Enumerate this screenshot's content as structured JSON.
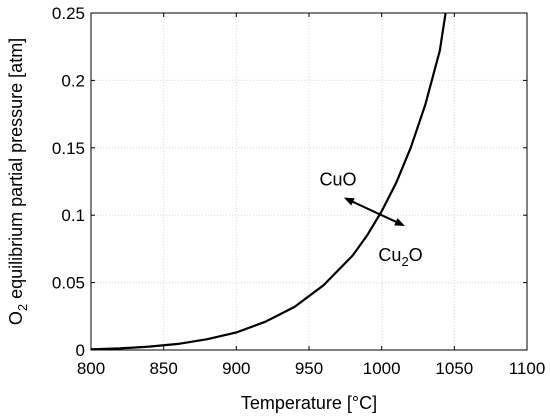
{
  "chart_data": {
    "type": "line",
    "xlabel": "Temperature [°C]",
    "ylabel": {
      "base": "O",
      "sub": "2",
      "rest": " equilibrium partial pressure [atm]"
    },
    "xlim": [
      800,
      1100
    ],
    "ylim": [
      0,
      0.25
    ],
    "xticks": [
      "800",
      "850",
      "900",
      "950",
      "1000",
      "1050",
      "1100"
    ],
    "yticks": [
      "0",
      "0.05",
      "0.1",
      "0.15",
      "0.2",
      "0.25"
    ],
    "grid": true,
    "line_color": "#000000",
    "series": [
      {
        "x": [
          800,
          820,
          840,
          860,
          880,
          900,
          920,
          940,
          960,
          980,
          990,
          1000,
          1010,
          1020,
          1030,
          1040,
          1044
        ],
        "y": [
          0.0005,
          0.0012,
          0.0025,
          0.0045,
          0.008,
          0.013,
          0.021,
          0.032,
          0.048,
          0.07,
          0.085,
          0.103,
          0.124,
          0.15,
          0.182,
          0.222,
          0.25
        ]
      }
    ],
    "annotations": [
      {
        "text": "CuO",
        "x": 970,
        "y": 0.122
      },
      {
        "base": "Cu",
        "sub": "2",
        "rest": "O",
        "x": 1013,
        "y": 0.066
      }
    ],
    "arrow": {
      "from": [
        974,
        0.113
      ],
      "to": [
        1016,
        0.092
      ]
    }
  }
}
